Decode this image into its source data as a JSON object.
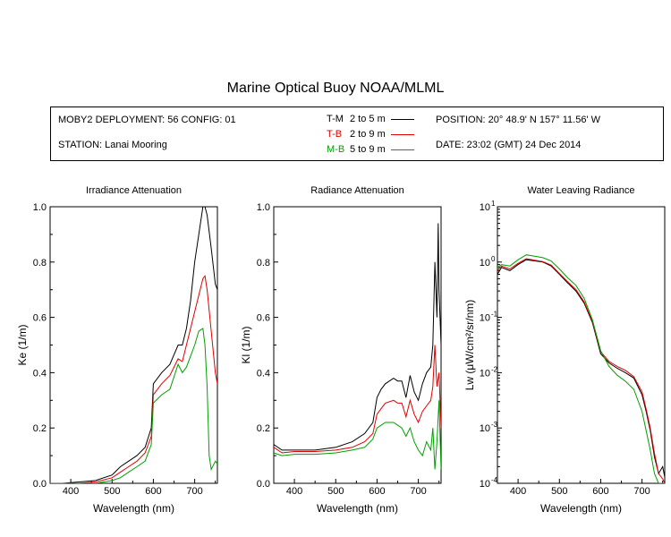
{
  "title": "Marine Optical Buoy NOAA/MLML",
  "info": {
    "deployment": "MOBY2 DEPLOYMENT: 56 CONFIG: 01",
    "station": "STATION: Lanai Mooring",
    "position": "POSITION: 20° 48.9' N   157° 11.56' W",
    "date": "DATE: 23:02 (GMT) 24 Dec 2014"
  },
  "legend": [
    {
      "code": "T-M",
      "range": "2 to 5  m",
      "color": "#000000"
    },
    {
      "code": "T-B",
      "range": "2 to 9  m",
      "color": "#e00000"
    },
    {
      "code": "M-B",
      "range": "5 to 9  m",
      "color": "#00a000"
    }
  ],
  "chart_data": [
    {
      "type": "line",
      "title": "Irradiance Attenuation",
      "xlabel": "Wavelength (nm)",
      "ylabel": "Ke  (1/m)",
      "xlim": [
        350,
        755
      ],
      "ylim": [
        0,
        1.0
      ],
      "xticks": [
        "400",
        "500",
        "600",
        "700"
      ],
      "yticks": [
        "0.0",
        "0.2",
        "0.4",
        "0.6",
        "0.8",
        "1.0"
      ],
      "series": [
        {
          "name": "T-M",
          "color": "#000000",
          "x": [
            350,
            380,
            420,
            460,
            500,
            520,
            540,
            560,
            580,
            595,
            600,
            620,
            640,
            660,
            670,
            680,
            690,
            700,
            710,
            720,
            725,
            730,
            740,
            750,
            755
          ],
          "y": [
            0,
            0,
            0.005,
            0.01,
            0.03,
            0.06,
            0.08,
            0.1,
            0.13,
            0.2,
            0.36,
            0.4,
            0.43,
            0.5,
            0.5,
            0.56,
            0.66,
            0.8,
            0.9,
            1.0,
            1.0,
            0.97,
            0.85,
            0.72,
            0.7
          ]
        },
        {
          "name": "T-B",
          "color": "#e00000",
          "x": [
            350,
            380,
            420,
            460,
            500,
            520,
            540,
            560,
            580,
            595,
            600,
            620,
            640,
            660,
            670,
            680,
            690,
            700,
            710,
            720,
            725,
            730,
            740,
            750,
            755
          ],
          "y": [
            0,
            0,
            0,
            0.005,
            0.02,
            0.04,
            0.06,
            0.08,
            0.11,
            0.17,
            0.32,
            0.36,
            0.39,
            0.45,
            0.44,
            0.5,
            0.56,
            0.62,
            0.68,
            0.74,
            0.75,
            0.7,
            0.55,
            0.4,
            0.36
          ]
        },
        {
          "name": "M-B",
          "color": "#00a000",
          "x": [
            350,
            380,
            420,
            460,
            500,
            520,
            540,
            560,
            580,
            595,
            600,
            620,
            640,
            660,
            670,
            680,
            690,
            700,
            710,
            720,
            725,
            730,
            735,
            740,
            750,
            755
          ],
          "y": [
            0,
            0,
            0,
            0,
            0.01,
            0.02,
            0.04,
            0.06,
            0.08,
            0.14,
            0.29,
            0.32,
            0.34,
            0.43,
            0.4,
            0.42,
            0.46,
            0.5,
            0.55,
            0.56,
            0.5,
            0.35,
            0.1,
            0.05,
            0.08,
            0.07
          ]
        }
      ]
    },
    {
      "type": "line",
      "title": "Radiance Attenuation",
      "xlabel": "Wavelength (nm)",
      "ylabel": "Kl  (1/m)",
      "xlim": [
        350,
        755
      ],
      "ylim": [
        0,
        1.0
      ],
      "xticks": [
        "400",
        "500",
        "600",
        "700"
      ],
      "yticks": [
        "0.0",
        "0.2",
        "0.4",
        "0.6",
        "0.8",
        "1.0"
      ],
      "series": [
        {
          "name": "T-M",
          "color": "#000000",
          "x": [
            350,
            370,
            400,
            450,
            500,
            540,
            570,
            590,
            600,
            610,
            620,
            640,
            650,
            660,
            670,
            680,
            690,
            700,
            710,
            720,
            730,
            735,
            740,
            745,
            748,
            750,
            755
          ],
          "y": [
            0.14,
            0.12,
            0.12,
            0.12,
            0.13,
            0.15,
            0.18,
            0.22,
            0.31,
            0.34,
            0.36,
            0.38,
            0.37,
            0.37,
            0.31,
            0.39,
            0.33,
            0.3,
            0.36,
            0.4,
            0.42,
            0.5,
            0.8,
            0.6,
            0.94,
            0.7,
            0.5
          ]
        },
        {
          "name": "T-B",
          "color": "#e00000",
          "x": [
            350,
            370,
            400,
            450,
            500,
            540,
            570,
            590,
            600,
            610,
            620,
            640,
            650,
            660,
            670,
            680,
            690,
            700,
            710,
            720,
            730,
            735,
            740,
            745,
            750,
            755
          ],
          "y": [
            0.13,
            0.11,
            0.115,
            0.115,
            0.12,
            0.13,
            0.15,
            0.18,
            0.25,
            0.27,
            0.29,
            0.3,
            0.29,
            0.29,
            0.24,
            0.3,
            0.25,
            0.22,
            0.26,
            0.28,
            0.3,
            0.35,
            0.5,
            0.35,
            0.4,
            0.2
          ]
        },
        {
          "name": "M-B",
          "color": "#00a000",
          "x": [
            350,
            370,
            400,
            450,
            500,
            540,
            570,
            590,
            600,
            610,
            620,
            640,
            650,
            660,
            670,
            680,
            690,
            700,
            710,
            720,
            730,
            735,
            740,
            745,
            750,
            755
          ],
          "y": [
            0.11,
            0.1,
            0.105,
            0.105,
            0.11,
            0.12,
            0.13,
            0.16,
            0.2,
            0.21,
            0.22,
            0.22,
            0.21,
            0.2,
            0.17,
            0.2,
            0.15,
            0.12,
            0.1,
            0.15,
            0.12,
            0.2,
            0.05,
            0.15,
            0.3,
            0.05
          ]
        }
      ]
    },
    {
      "type": "line",
      "title": "Water Leaving Radiance",
      "xlabel": "Wavelength (nm)",
      "ylabel": "Lw  (μW/cm²/sr/nm)",
      "xlim": [
        350,
        755
      ],
      "ylim": [
        0.0001,
        10
      ],
      "yscale": "log",
      "xticks": [
        "400",
        "500",
        "600",
        "700"
      ],
      "yticks": [
        "10",
        "10",
        "10",
        "10",
        "10",
        "10"
      ],
      "ytick_exponents": [
        "1",
        "0",
        "-1",
        "-2",
        "-3",
        "-4"
      ],
      "series": [
        {
          "name": "T-M",
          "color": "#000000",
          "x": [
            350,
            360,
            380,
            400,
            420,
            440,
            460,
            480,
            500,
            520,
            540,
            560,
            580,
            600,
            620,
            640,
            660,
            680,
            700,
            710,
            720,
            730,
            740,
            750,
            755
          ],
          "y": [
            0.6,
            0.8,
            0.7,
            0.9,
            1.1,
            1.05,
            1.0,
            0.85,
            0.6,
            0.42,
            0.3,
            0.18,
            0.08,
            0.022,
            0.015,
            0.012,
            0.01,
            0.008,
            0.004,
            0.002,
            0.0009,
            0.0003,
            0.00015,
            0.0002,
            0.00013
          ]
        },
        {
          "name": "T-B",
          "color": "#e00000",
          "x": [
            350,
            360,
            380,
            400,
            420,
            440,
            460,
            480,
            500,
            520,
            540,
            560,
            580,
            600,
            620,
            640,
            660,
            680,
            700,
            710,
            720,
            730,
            740,
            750,
            755
          ],
          "y": [
            0.7,
            0.85,
            0.75,
            0.95,
            1.15,
            1.08,
            1.02,
            0.88,
            0.62,
            0.44,
            0.32,
            0.19,
            0.085,
            0.024,
            0.016,
            0.013,
            0.011,
            0.0085,
            0.0045,
            0.0022,
            0.001,
            0.00035,
            0.00015,
            0.00012,
            0.0001
          ]
        },
        {
          "name": "M-B",
          "color": "#00a000",
          "x": [
            350,
            360,
            380,
            400,
            420,
            440,
            460,
            480,
            500,
            520,
            540,
            560,
            580,
            600,
            620,
            640,
            660,
            680,
            700,
            710,
            720,
            730,
            740,
            750,
            755
          ],
          "y": [
            0.8,
            0.9,
            0.85,
            1.1,
            1.35,
            1.28,
            1.2,
            1.05,
            0.75,
            0.52,
            0.38,
            0.22,
            0.09,
            0.025,
            0.013,
            0.009,
            0.007,
            0.005,
            0.002,
            0.0009,
            0.0004,
            0.00015,
            0.0001,
            0.0001,
            0.0001
          ]
        }
      ]
    }
  ]
}
